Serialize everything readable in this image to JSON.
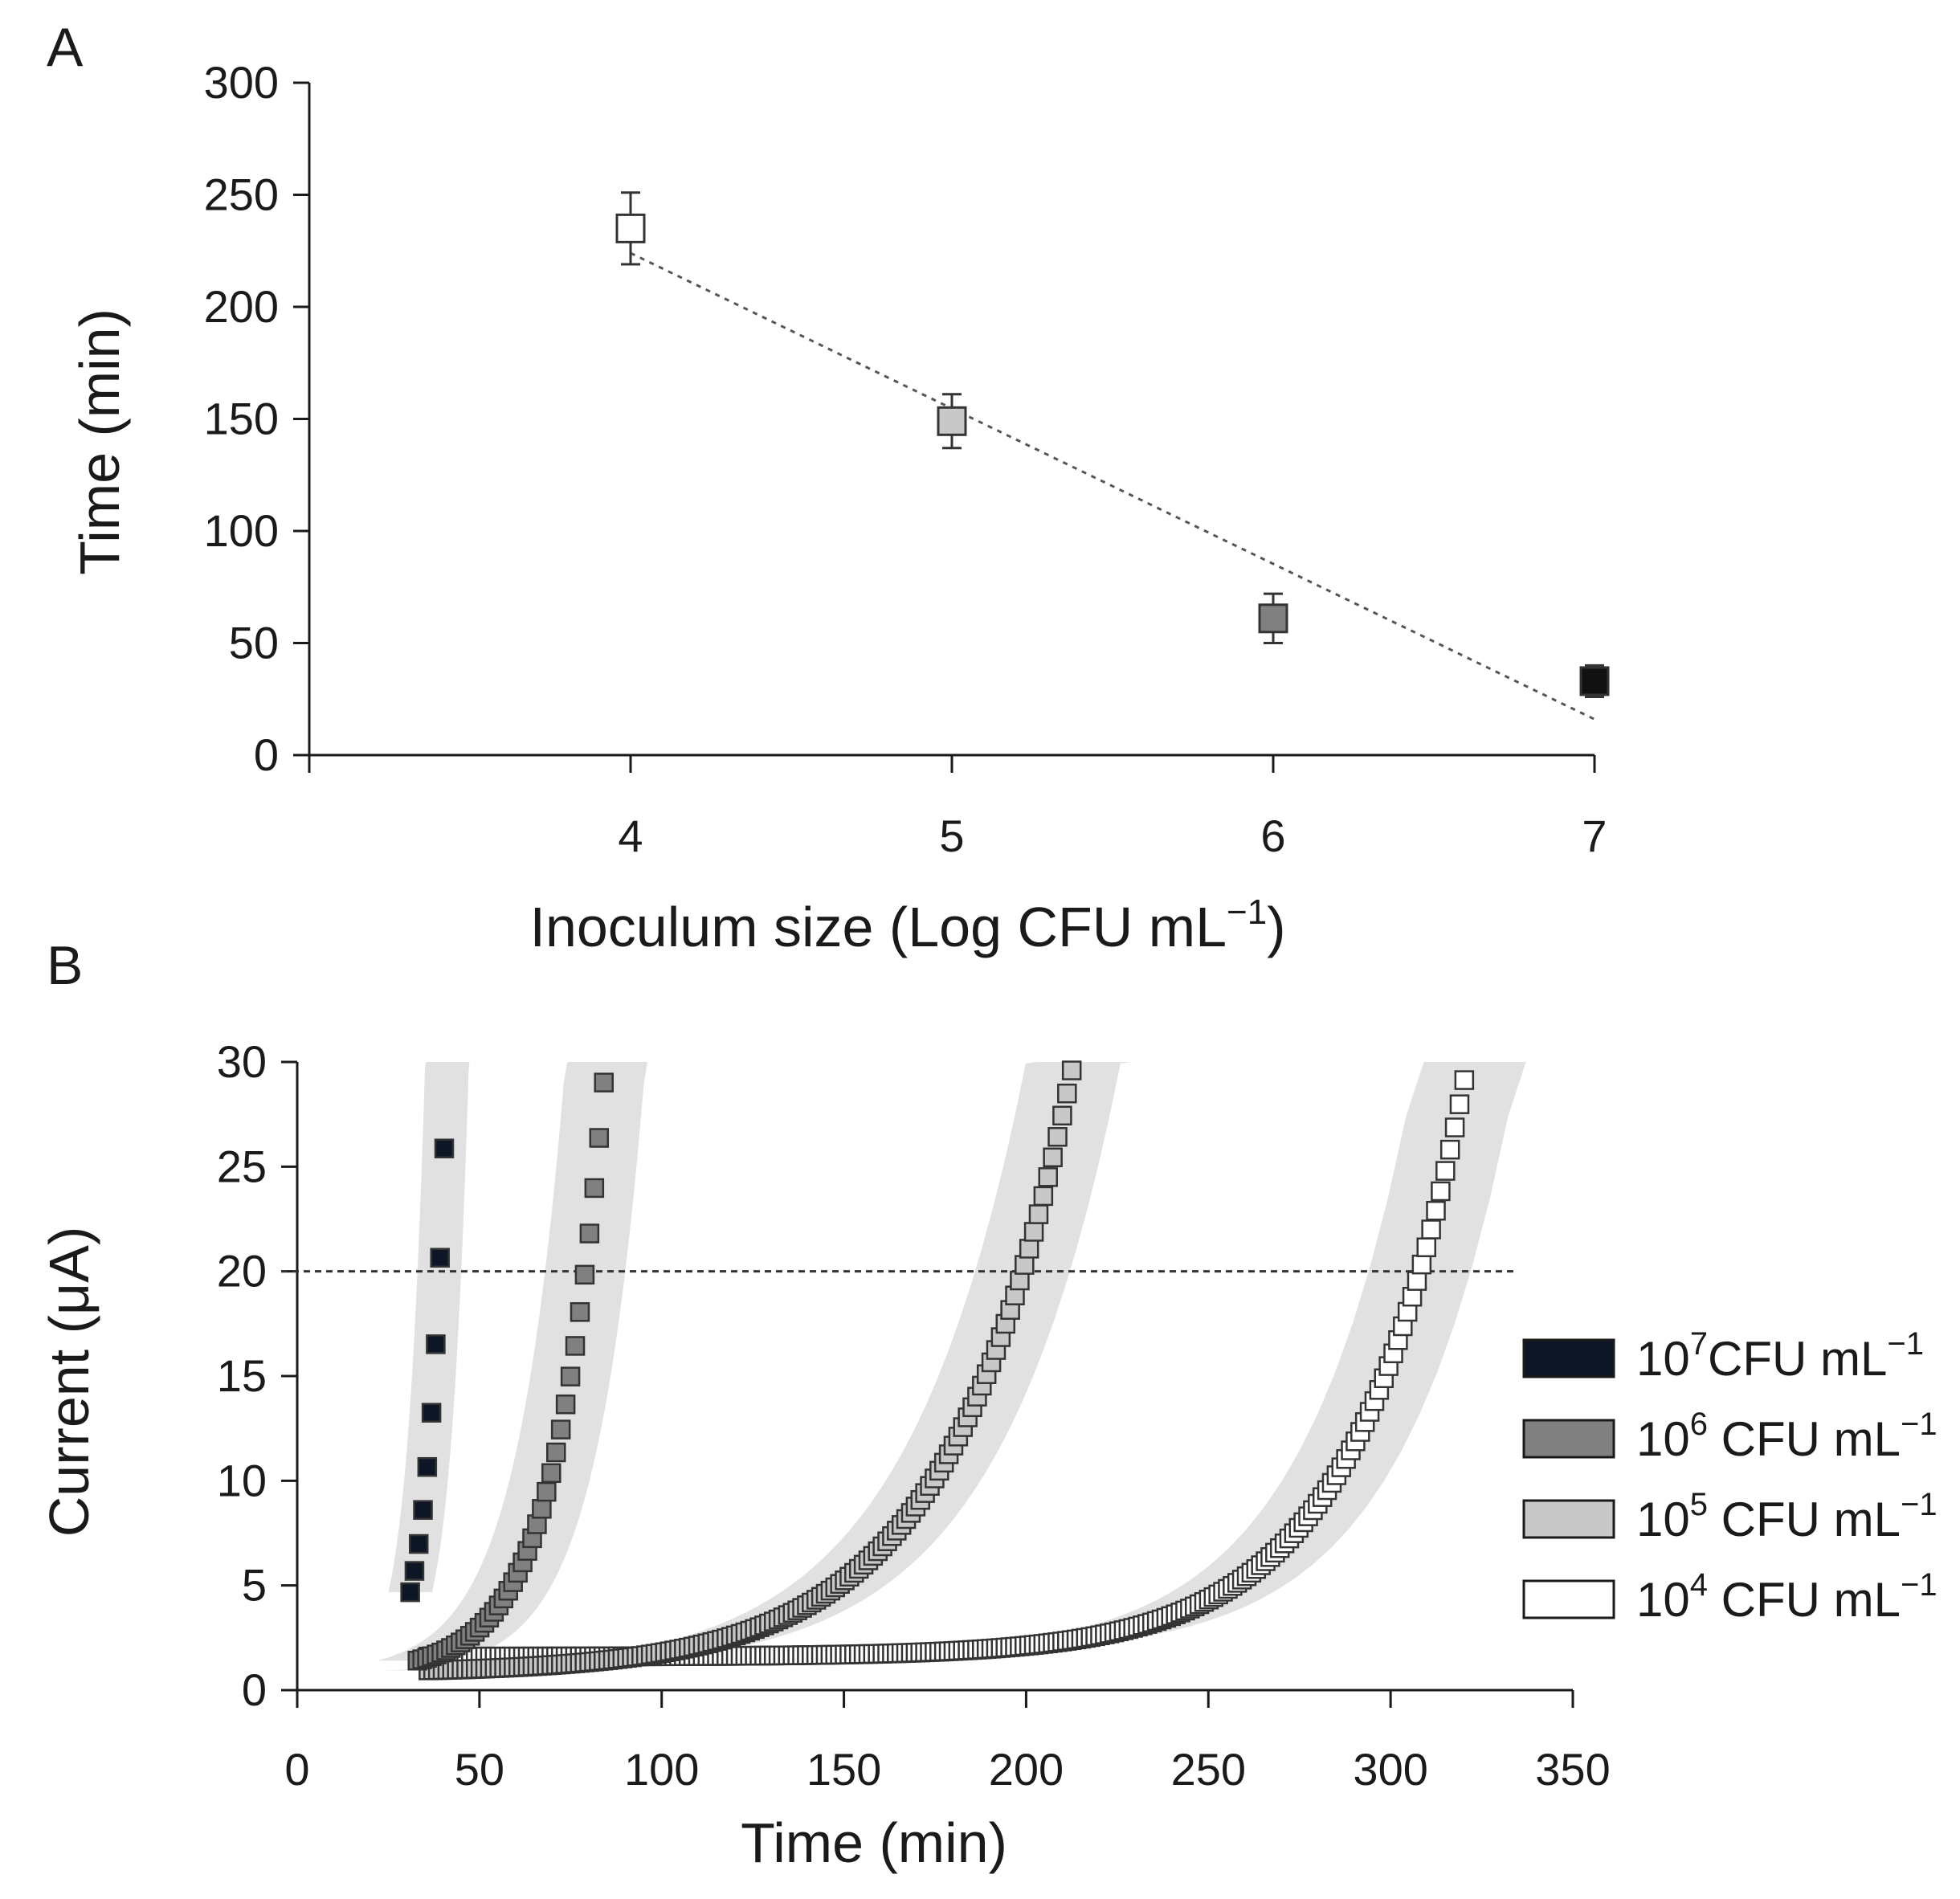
{
  "chart_data": [
    {
      "panel": "A",
      "type": "scatter",
      "xlabel": "Inoculum size (Log CFU mL",
      "xlabel_sup": "−1",
      "xlabel_end": ")",
      "ylabel": "Time (min)",
      "xlim": [
        3,
        7
      ],
      "ylim": [
        0,
        300
      ],
      "xticks": [
        "4",
        "5",
        "6",
        "7"
      ],
      "yticks": [
        "0",
        "50",
        "100",
        "150",
        "200",
        "250",
        "300"
      ],
      "points": [
        {
          "x": 4,
          "y": 235,
          "err": 16,
          "fill": "#ffffff"
        },
        {
          "x": 5,
          "y": 149,
          "err": 12,
          "fill": "#c8c8c8"
        },
        {
          "x": 6,
          "y": 61,
          "err": 11,
          "fill": "#808080"
        },
        {
          "x": 7,
          "y": 33,
          "err": 7,
          "fill": "#111111"
        }
      ],
      "trendline": {
        "x": [
          4,
          7
        ],
        "y": [
          224,
          16
        ],
        "style": "dotted"
      }
    },
    {
      "panel": "B",
      "type": "scatter",
      "xlabel": "Time (min)",
      "ylabel": "Current (μA)",
      "xlim": [
        0,
        350
      ],
      "ylim": [
        0,
        30
      ],
      "xticks": [
        "0",
        "50",
        "100",
        "150",
        "200",
        "250",
        "300",
        "350"
      ],
      "yticks": [
        "0",
        "5",
        "10",
        "15",
        "20",
        "25",
        "30"
      ],
      "threshold": 20,
      "legend_position": "right",
      "series": [
        {
          "name": "10",
          "sup": "7",
          "suffix": "CFU mL",
          "suffix_sup": "−1",
          "fill": "#0d1624",
          "x_start": 31,
          "x_end": 45,
          "base": 0.8,
          "time_to_20": 39,
          "growth_k": 0.2,
          "band": 6
        },
        {
          "name": "10",
          "sup": "6",
          "suffix": " CFU mL",
          "suffix_sup": "−1",
          "fill": "#808080",
          "x_start": 33,
          "x_end": 92,
          "base": 0.8,
          "time_to_20": 79,
          "growth_k": 0.075,
          "band": 11
        },
        {
          "name": "10",
          "sup": "5",
          "suffix": " CFU mL",
          "suffix_sup": "−1",
          "fill": "#c8c8c8",
          "x_start": 36,
          "x_end": 219,
          "base": 0.8,
          "time_to_20": 199,
          "growth_k": 0.03,
          "band": 13
        },
        {
          "name": "10",
          "sup": "4",
          "suffix": " CFU mL",
          "suffix_sup": "−1",
          "fill": "#ffffff",
          "x_start": 36,
          "x_end": 328,
          "base": 1.6,
          "time_to_20": 308,
          "growth_k": 0.033,
          "band": 14
        }
      ]
    }
  ],
  "panels": {
    "a_label": "A",
    "b_label": "B"
  }
}
